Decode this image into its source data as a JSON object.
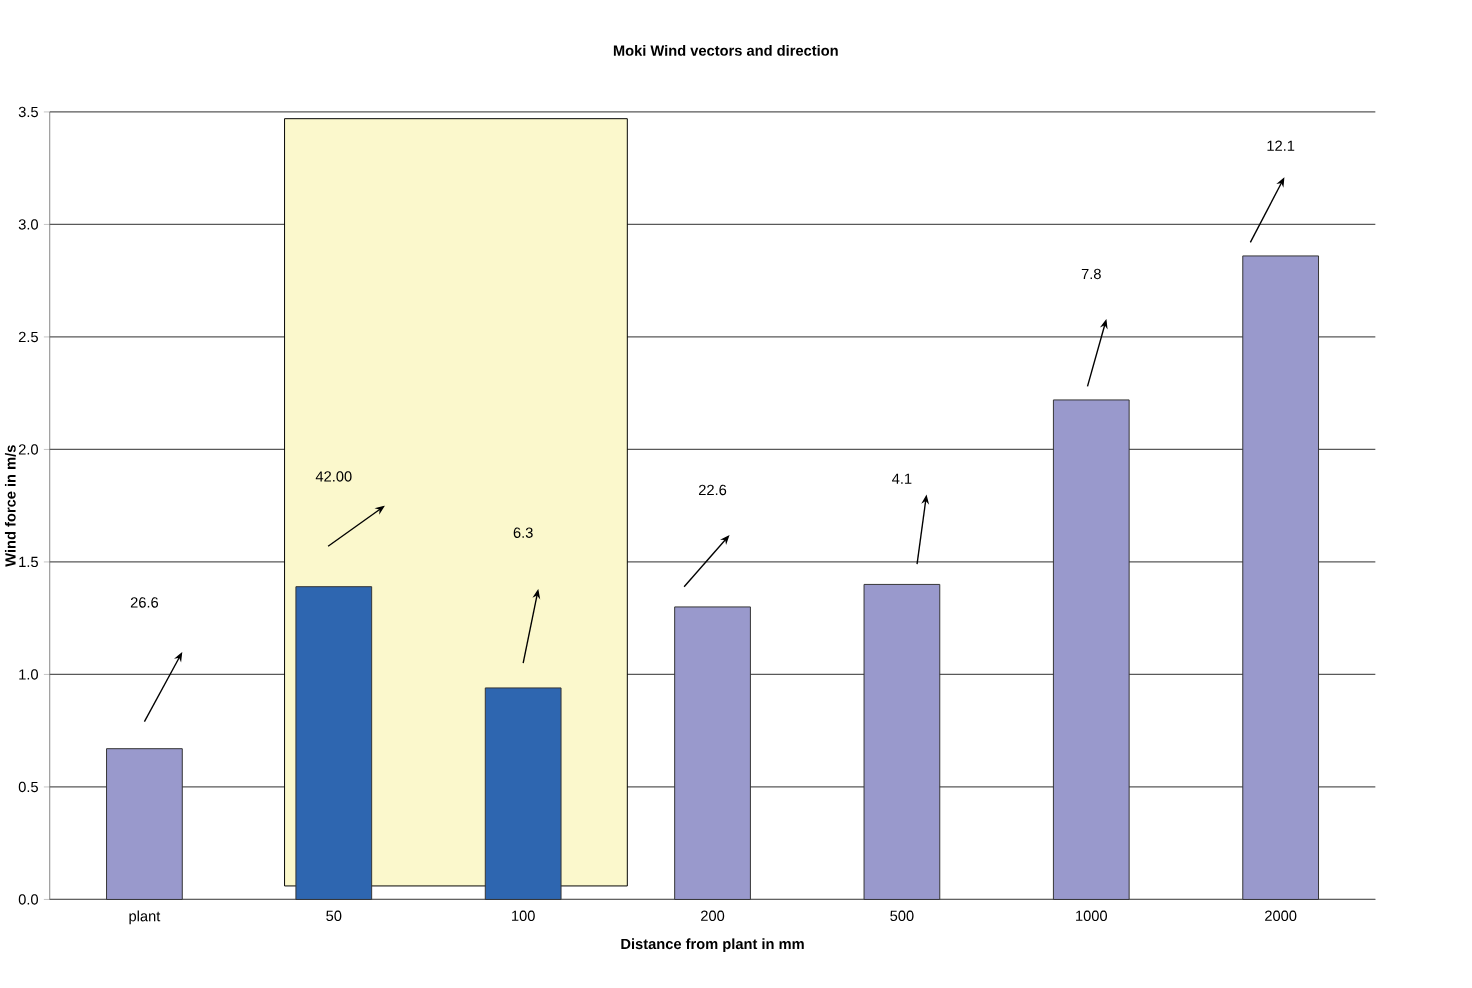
{
  "chart_data": {
    "type": "bar",
    "title": "Moki Wind vectors and direction",
    "xlabel": "Distance from plant in mm",
    "ylabel": "Wind force in m/s",
    "categories": [
      "plant",
      "50",
      "100",
      "200",
      "500",
      "1000",
      "2000"
    ],
    "values": [
      0.67,
      1.39,
      0.94,
      1.3,
      1.4,
      2.22,
      2.86
    ],
    "colors": [
      "#9999cc",
      "#2e66b0",
      "#2e66b0",
      "#9999cc",
      "#9999cc",
      "#9999cc",
      "#9999cc"
    ],
    "ylim": [
      0,
      3.5
    ],
    "yticks": [
      {
        "value": 0,
        "label": "0.0"
      },
      {
        "value": 0.5,
        "label": "0.5"
      },
      {
        "value": 1,
        "label": "1.0"
      },
      {
        "value": 1.5,
        "label": "1.5"
      },
      {
        "value": 2,
        "label": "2.0"
      },
      {
        "value": 2.5,
        "label": "2.5"
      },
      {
        "value": 3,
        "label": "3.0"
      },
      {
        "value": 3.5,
        "label": "3.5"
      }
    ],
    "grid": "y",
    "bands": [
      {
        "axis": "x",
        "from": "50",
        "to": "100",
        "color": "#fbf8cc"
      }
    ],
    "annotations": [
      "26.6",
      "42.00",
      "6.3",
      "22.6",
      "4.1",
      "7.8",
      "12.1"
    ]
  }
}
